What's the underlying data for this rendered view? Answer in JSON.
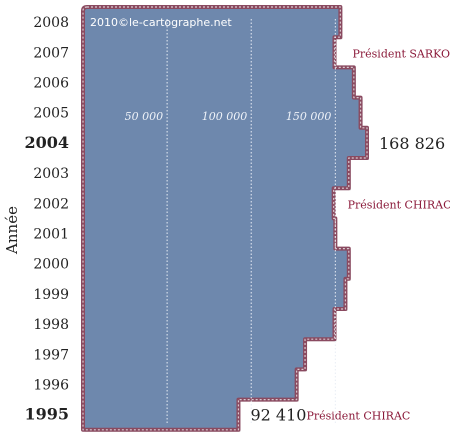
{
  "credit": "2010©le-cartographe.net",
  "chart_data": {
    "type": "bar",
    "orientation": "horizontal",
    "ylabel": "Année",
    "categories": [
      "2008",
      "2007",
      "2006",
      "2005",
      "2004",
      "2003",
      "2002",
      "2001",
      "2000",
      "1999",
      "1998",
      "1997",
      "1996",
      "1995"
    ],
    "values": [
      153000,
      149500,
      161000,
      165000,
      168826,
      158000,
      149000,
      150000,
      158000,
      156000,
      149500,
      132000,
      127000,
      92410
    ],
    "highlight_years": [
      "2004",
      "1995"
    ],
    "gridlines": [
      "50 000",
      "100 000",
      "150 000"
    ],
    "gridline_values": [
      50000,
      100000,
      150000
    ],
    "xlim": [
      0,
      168826
    ],
    "data_labels": [
      {
        "year": "2004",
        "text": "168 826"
      },
      {
        "year": "1995",
        "text": "92 410"
      }
    ],
    "annotations": [
      {
        "year": "2007",
        "text": "Président SARKOZY"
      },
      {
        "year": "2002",
        "text": "Président CHIRAC"
      },
      {
        "year": "1995",
        "text": "Président CHIRAC"
      }
    ],
    "colors": {
      "fill": "#6e88ad",
      "outline": "#8a4a60",
      "stitch": "#d9c9cf",
      "grid": "#e8edf5",
      "annotation": "#8b1a3a",
      "text": "#222222"
    }
  }
}
